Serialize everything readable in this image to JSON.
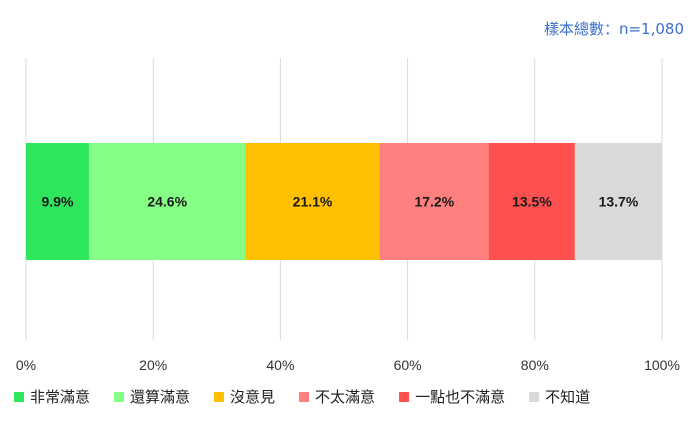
{
  "chart_data": {
    "type": "bar",
    "orientation": "horizontal",
    "stacked": true,
    "sample_note": "樣本總數：n=1,080",
    "categories": [
      ""
    ],
    "series": [
      {
        "name": "非常滿意",
        "values": [
          9.9
        ],
        "label": "9.9%",
        "color": "#2ee65c"
      },
      {
        "name": "還算滿意",
        "values": [
          24.6
        ],
        "label": "24.6%",
        "color": "#85ff85"
      },
      {
        "name": "沒意見",
        "values": [
          21.1
        ],
        "label": "21.1%",
        "color": "#ffc000"
      },
      {
        "name": "不太滿意",
        "values": [
          17.2
        ],
        "label": "17.2%",
        "color": "#ff7f7f"
      },
      {
        "name": "一點也不滿意",
        "values": [
          13.5
        ],
        "label": "13.5%",
        "color": "#ff5050"
      },
      {
        "name": "不知道",
        "values": [
          13.7
        ],
        "label": "13.7%",
        "color": "#d9d9d9"
      }
    ],
    "xlim": [
      0,
      100
    ],
    "x_ticks": [
      0,
      20,
      40,
      60,
      80,
      100
    ],
    "x_tick_labels": [
      "0%",
      "20%",
      "40%",
      "60%",
      "80%",
      "100%"
    ],
    "grid": true,
    "legend_position": "bottom"
  }
}
